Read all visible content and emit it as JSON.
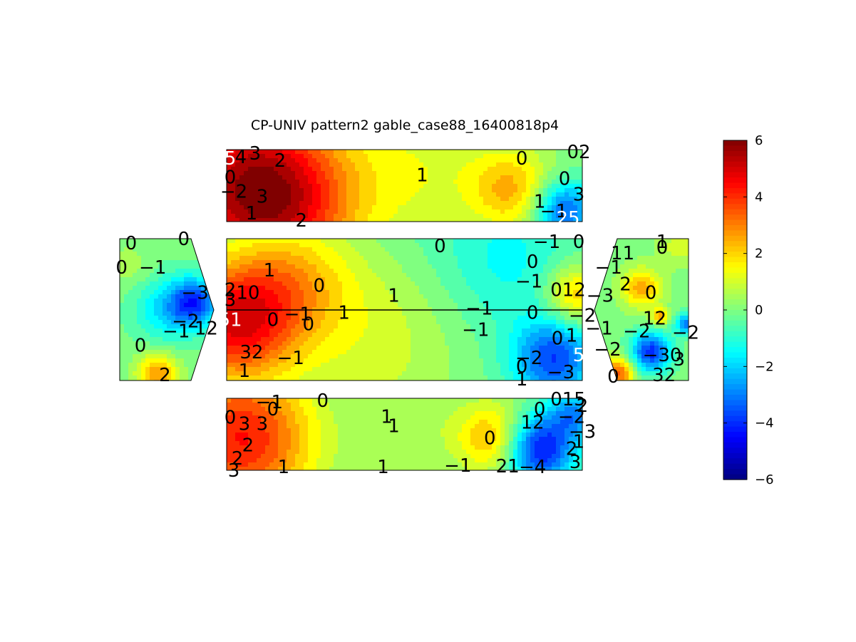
{
  "chart_data": {
    "type": "contour",
    "title": "CP-UNIV pattern2 gable_case88_16400818p4",
    "colormap": "jet",
    "clim": [
      -6,
      6
    ],
    "colorbar": {
      "placement": "right",
      "ticks": [
        -6,
        -4,
        -2,
        0,
        2,
        4,
        6
      ],
      "tick_labels": [
        "−6",
        "−4",
        "−2",
        "0",
        "2",
        "4",
        "6"
      ]
    },
    "panels": [
      {
        "name": "top-roof",
        "hotspots": [
          [
            0.05,
            0.45,
            4.5,
            0.18
          ],
          [
            0.95,
            0.85,
            -3.5,
            0.06
          ],
          [
            0.55,
            0.3,
            1.2,
            0.15
          ],
          [
            0.8,
            0.55,
            2.2,
            0.08
          ],
          [
            0.18,
            0.8,
            2.5,
            0.15
          ],
          [
            0.35,
            0.5,
            -0.2,
            0.2
          ]
        ],
        "labels": [
          [
            "5",
            0.01,
            0.12,
            "w"
          ],
          [
            "4",
            0.04,
            0.1
          ],
          [
            "3",
            0.08,
            0.05
          ],
          [
            "2",
            0.15,
            0.15
          ],
          [
            "0",
            0.83,
            0.12
          ],
          [
            "02",
            0.99,
            0.03
          ],
          [
            "1",
            0.55,
            0.35
          ],
          [
            "0",
            0.95,
            0.4
          ],
          [
            "−2",
            0.02,
            0.58
          ],
          [
            "0",
            0.01,
            0.38
          ],
          [
            "3",
            0.1,
            0.65
          ],
          [
            "1",
            0.07,
            0.88
          ],
          [
            "2",
            0.21,
            0.98
          ],
          [
            "1",
            0.88,
            0.72
          ],
          [
            "−1",
            0.92,
            0.85
          ],
          [
            "3",
            0.99,
            0.62
          ],
          [
            "25",
            0.96,
            0.95,
            "w"
          ]
        ]
      },
      {
        "name": "center-wall",
        "hotspots": [
          [
            0.02,
            0.6,
            4.5,
            0.12
          ],
          [
            0.45,
            0.6,
            1.8,
            0.2
          ],
          [
            0.92,
            0.85,
            -3.5,
            0.08
          ],
          [
            0.6,
            0.3,
            -1.2,
            0.25
          ],
          [
            0.98,
            0.4,
            2.5,
            0.06
          ],
          [
            0.18,
            0.3,
            2.0,
            0.12
          ],
          [
            0.8,
            0.15,
            -0.8,
            0.12
          ]
        ],
        "labels": [
          [
            "0",
            0.6,
            0.05
          ],
          [
            "−1",
            0.9,
            0.02
          ],
          [
            "0",
            0.99,
            0.02
          ],
          [
            "1",
            0.12,
            0.22
          ],
          [
            "0",
            0.86,
            0.16
          ],
          [
            "0",
            0.26,
            0.33
          ],
          [
            "−1",
            0.85,
            0.3
          ],
          [
            "2",
            0.01,
            0.36
          ],
          [
            "10",
            0.06,
            0.38
          ],
          [
            "1",
            0.47,
            0.4
          ],
          [
            "012",
            0.96,
            0.36
          ],
          [
            "3",
            0.01,
            0.43
          ],
          [
            "−1",
            0.71,
            0.49
          ],
          [
            "0",
            0.86,
            0.52
          ],
          [
            "−2",
            1.0,
            0.54
          ],
          [
            "51",
            0.01,
            0.57,
            "w"
          ],
          [
            "0",
            0.13,
            0.57
          ],
          [
            "−1",
            0.2,
            0.53
          ],
          [
            "0",
            0.23,
            0.6
          ],
          [
            "1",
            0.33,
            0.52
          ],
          [
            "−1",
            0.7,
            0.64
          ],
          [
            "0",
            0.93,
            0.7
          ],
          [
            "1",
            0.97,
            0.68
          ],
          [
            "32",
            0.07,
            0.8
          ],
          [
            "−1",
            0.18,
            0.84
          ],
          [
            "−2",
            0.85,
            0.84
          ],
          [
            "5",
            0.99,
            0.82,
            "w"
          ],
          [
            "0",
            0.83,
            0.9
          ],
          [
            "1",
            0.05,
            0.93
          ],
          [
            "−3",
            0.94,
            0.94
          ],
          [
            "1",
            0.83,
            0.99
          ]
        ]
      },
      {
        "name": "bottom-roof",
        "hotspots": [
          [
            0.05,
            0.55,
            4.5,
            0.15
          ],
          [
            0.88,
            0.7,
            -4.5,
            0.07
          ],
          [
            0.75,
            0.55,
            2.5,
            0.07
          ],
          [
            0.3,
            0.35,
            -0.5,
            0.2
          ],
          [
            0.5,
            0.4,
            0.9,
            0.12
          ],
          [
            0.98,
            0.2,
            -2.5,
            0.05
          ]
        ],
        "labels": [
          [
            "−1",
            0.12,
            0.05
          ],
          [
            "0",
            0.27,
            0.03
          ],
          [
            "015",
            0.96,
            0.01
          ],
          [
            "0",
            0.01,
            0.26
          ],
          [
            "3",
            0.05,
            0.35
          ],
          [
            "3",
            0.1,
            0.35
          ],
          [
            "0",
            0.13,
            0.15
          ],
          [
            "1",
            0.45,
            0.25
          ],
          [
            "1",
            0.47,
            0.38
          ],
          [
            "0",
            0.88,
            0.15
          ],
          [
            "12",
            0.86,
            0.33
          ],
          [
            "2",
            1.0,
            0.1
          ],
          [
            "−2",
            0.97,
            0.25
          ],
          [
            "−3",
            1.0,
            0.46
          ],
          [
            "2",
            0.06,
            0.65
          ],
          [
            "0",
            0.74,
            0.55
          ],
          [
            "2",
            0.03,
            0.83
          ],
          [
            "2",
            0.97,
            0.7
          ],
          [
            "1",
            0.99,
            0.6
          ],
          [
            "1",
            0.16,
            0.95
          ],
          [
            "1",
            0.44,
            0.95
          ],
          [
            "−1",
            0.65,
            0.93
          ],
          [
            "21",
            0.79,
            0.94
          ],
          [
            "−4",
            0.86,
            0.95
          ],
          [
            "3",
            0.98,
            0.88
          ],
          [
            "3",
            0.02,
            1.0
          ]
        ]
      },
      {
        "name": "left-gable",
        "hotspots": [
          [
            0.8,
            0.45,
            -3.5,
            0.18
          ],
          [
            0.4,
            0.95,
            2.8,
            0.15
          ],
          [
            0.1,
            0.2,
            0.6,
            0.15
          ],
          [
            0.5,
            0.5,
            -1.8,
            0.25
          ]
        ],
        "labels": [
          [
            "0",
            0.12,
            0.03
          ],
          [
            "0",
            0.68,
            0.0
          ],
          [
            "0",
            0.02,
            0.2
          ],
          [
            "−1",
            0.35,
            0.2
          ],
          [
            "−3",
            0.8,
            0.38
          ],
          [
            "−2",
            0.7,
            0.58
          ],
          [
            "−1",
            0.6,
            0.65
          ],
          [
            "12",
            0.92,
            0.63
          ],
          [
            "0",
            0.22,
            0.75
          ],
          [
            "2",
            0.48,
            0.96
          ]
        ]
      },
      {
        "name": "right-gable",
        "hotspots": [
          [
            0.5,
            0.35,
            2.5,
            0.15
          ],
          [
            0.6,
            0.8,
            -4.0,
            0.15
          ],
          [
            0.25,
            0.95,
            3.5,
            0.12
          ],
          [
            0.7,
            0.55,
            2.5,
            0.06
          ],
          [
            0.98,
            0.6,
            -3.0,
            0.08
          ],
          [
            0.9,
            0.05,
            1.0,
            0.15
          ]
        ],
        "labels": [
          [
            "1",
            0.72,
            0.02
          ],
          [
            "0",
            0.72,
            0.06
          ],
          [
            "11",
            0.3,
            0.1
          ],
          [
            "−1",
            0.15,
            0.2
          ],
          [
            "2",
            0.33,
            0.32
          ],
          [
            "−3",
            0.06,
            0.4
          ],
          [
            "0",
            0.6,
            0.38
          ],
          [
            "12",
            0.64,
            0.56
          ],
          [
            "−2",
            0.45,
            0.65
          ],
          [
            "−2",
            0.97,
            0.66
          ],
          [
            "−1",
            0.05,
            0.63
          ],
          [
            "−2",
            0.14,
            0.78
          ],
          [
            "−30",
            0.72,
            0.82
          ],
          [
            "3",
            0.9,
            0.85
          ],
          [
            "0",
            0.2,
            0.97
          ],
          [
            "32",
            0.74,
            0.96
          ]
        ]
      }
    ]
  }
}
